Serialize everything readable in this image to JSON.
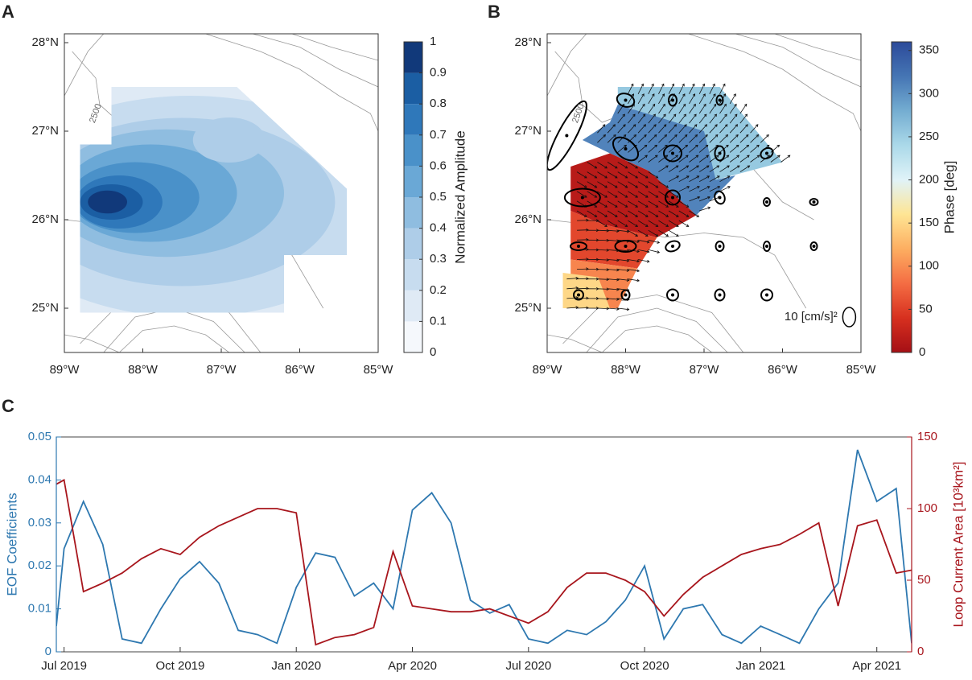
{
  "chart_data": [
    {
      "type": "amplitude_map",
      "panel": "A",
      "xlim": [
        -89,
        -85
      ],
      "xticks": [
        {
          "value": -89,
          "label": "89°W"
        },
        {
          "value": -88,
          "label": "88°W"
        },
        {
          "value": -87,
          "label": "87°W"
        },
        {
          "value": -86,
          "label": "86°W"
        },
        {
          "value": -85,
          "label": "85°W"
        }
      ],
      "ylim": [
        24.5,
        28.1
      ],
      "yticks": [
        {
          "value": 25,
          "label": "25°N"
        },
        {
          "value": 26,
          "label": "26°N"
        },
        {
          "value": 27,
          "label": "27°N"
        },
        {
          "value": 28,
          "label": "28°N"
        }
      ],
      "clim": [
        0,
        1
      ],
      "cticks": [
        0,
        0.1,
        0.2,
        0.3,
        0.4,
        0.5,
        0.6,
        0.7,
        0.8,
        0.9,
        1
      ],
      "colors": [
        "#f5f8fc",
        "#dfeaf5",
        "#c7dcef",
        "#aecde8",
        "#8fbde0",
        "#6aa8d6",
        "#4a91c9",
        "#2f78ba",
        "#1b5ea3",
        "#11397a"
      ],
      "colorbar_label": "Normalized Amplitude",
      "annotations": [
        "2500"
      ]
    },
    {
      "type": "phase_map",
      "panel": "B",
      "xlim": [
        -89,
        -85
      ],
      "xticks": [
        {
          "value": -89,
          "label": "89°W"
        },
        {
          "value": -88,
          "label": "88°W"
        },
        {
          "value": -87,
          "label": "87°W"
        },
        {
          "value": -86,
          "label": "86°W"
        },
        {
          "value": -85,
          "label": "85°W"
        }
      ],
      "ylim": [
        24.5,
        28.1
      ],
      "yticks": [
        {
          "value": 25,
          "label": "25°N"
        },
        {
          "value": 26,
          "label": "26°N"
        },
        {
          "value": 27,
          "label": "27°N"
        },
        {
          "value": 28,
          "label": "28°N"
        }
      ],
      "clim": [
        0,
        360
      ],
      "cticks": [
        0,
        50,
        100,
        150,
        200,
        250,
        300,
        350
      ],
      "colormap": [
        "#a50f15",
        "#d7301f",
        "#f46d43",
        "#fdae61",
        "#fee594",
        "#e0f3f8",
        "#abd9e9",
        "#74add1",
        "#4575b4",
        "#2c4a9a"
      ],
      "region_values": [
        255,
        310,
        15,
        55,
        95,
        150
      ],
      "colorbar_label": "Phase [deg]",
      "annotations": [
        "2500",
        "10 [cm/s]²"
      ]
    },
    {
      "type": "line",
      "panel": "C",
      "x": [
        -0.2,
        0,
        0.5,
        1,
        1.5,
        2,
        2.5,
        3,
        3.5,
        4,
        4.5,
        5,
        5.5,
        6,
        6.5,
        7,
        7.5,
        8,
        8.5,
        9,
        9.5,
        10,
        10.5,
        11,
        11.5,
        12,
        12.5,
        13,
        13.5,
        14,
        14.5,
        15,
        15.5,
        16,
        16.5,
        17,
        17.5,
        18,
        18.5,
        19,
        19.5,
        20,
        20.5,
        21,
        21.5,
        21.9
      ],
      "xlim": [
        -0.2,
        21.9
      ],
      "xticks": [
        {
          "value": 0,
          "label": "Jul 2019"
        },
        {
          "value": 3,
          "label": "Oct 2019"
        },
        {
          "value": 6,
          "label": "Jan 2020"
        },
        {
          "value": 9,
          "label": "Apr 2020"
        },
        {
          "value": 12,
          "label": "Jul 2020"
        },
        {
          "value": 15,
          "label": "Oct 2020"
        },
        {
          "value": 18,
          "label": "Jan 2021"
        },
        {
          "value": 21,
          "label": "Apr 2021"
        }
      ],
      "ylim": [
        0,
        0.05
      ],
      "yticks": [
        0,
        0.01,
        0.02,
        0.03,
        0.04,
        0.05
      ],
      "y2lim": [
        0,
        150
      ],
      "y2ticks": [
        0,
        50,
        100,
        150
      ],
      "ylabel": "EOF Coefficients",
      "y2label": "Loop Current Area [10³km²]",
      "series": [
        {
          "color": "#2e78b0",
          "values": [
            0.006,
            0.024,
            0.035,
            0.025,
            0.003,
            0.002,
            0.01,
            0.017,
            0.021,
            0.016,
            0.005,
            0.004,
            0.002,
            0.015,
            0.023,
            0.022,
            0.013,
            0.016,
            0.01,
            0.033,
            0.037,
            0.03,
            0.012,
            0.009,
            0.011,
            0.003,
            0.002,
            0.005,
            0.004,
            0.007,
            0.012,
            0.02,
            0.003,
            0.01,
            0.011,
            0.004,
            0.002,
            0.006,
            0.004,
            0.002,
            0.01,
            0.016,
            0.047,
            0.035,
            0.038,
            0.002
          ]
        },
        {
          "color": "#a8161d",
          "axis": "y2",
          "values": [
            117,
            120,
            42,
            48,
            55,
            65,
            72,
            68,
            80,
            88,
            94,
            100,
            100,
            97,
            5,
            10,
            12,
            17,
            70,
            32,
            30,
            28,
            28,
            30,
            25,
            20,
            28,
            45,
            55,
            55,
            50,
            42,
            25,
            40,
            52,
            60,
            68,
            72,
            75,
            82,
            90,
            32,
            88,
            92,
            55,
            57
          ]
        }
      ]
    }
  ]
}
